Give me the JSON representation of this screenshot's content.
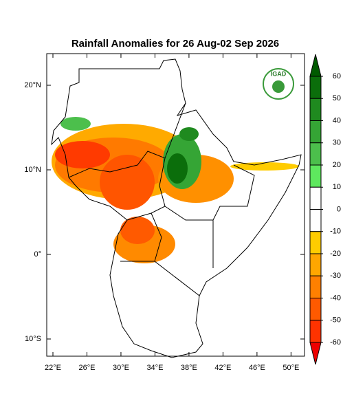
{
  "map": {
    "title": "Rainfall Anomalies for 26 Aug-02 Sep 2026",
    "logo": "IGAD",
    "lon_ticks": [
      {
        "value": 22,
        "label": "22°E"
      },
      {
        "value": 26,
        "label": "26°E"
      },
      {
        "value": 30,
        "label": "30°E"
      },
      {
        "value": 34,
        "label": "34°E"
      },
      {
        "value": 38,
        "label": "38°E"
      },
      {
        "value": 42,
        "label": "42°E"
      },
      {
        "value": 46,
        "label": "46°E"
      },
      {
        "value": 50,
        "label": "50°E"
      }
    ],
    "lat_ticks": [
      {
        "value": 20,
        "label": "20°N"
      },
      {
        "value": 10,
        "label": "10°N"
      },
      {
        "value": 0,
        "label": "0°"
      },
      {
        "value": -10,
        "label": "10°S"
      }
    ],
    "colorbar": {
      "levels": [
        60,
        50,
        40,
        30,
        20,
        10,
        0,
        -10,
        -20,
        -30,
        -40,
        -50,
        -60
      ],
      "colors": [
        "#005a00",
        "#0b6e0b",
        "#1f8a1f",
        "#35a535",
        "#4cbf4c",
        "#5ee85e",
        "#ffffff",
        "#ffffff",
        "#ffcc00",
        "#ffa600",
        "#ff8000",
        "#ff5a00",
        "#ff3300",
        "#ee0000"
      ]
    }
  }
}
